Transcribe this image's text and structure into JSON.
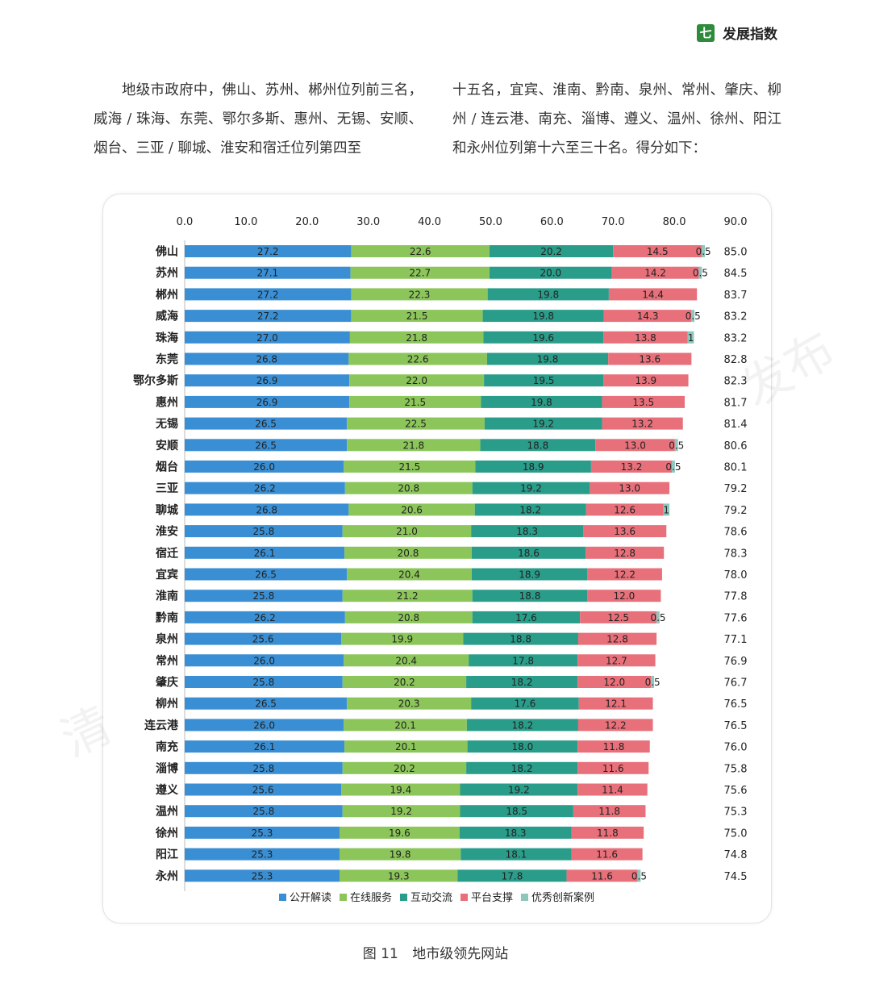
{
  "header": {
    "badge": "七",
    "title": "发展指数"
  },
  "text": {
    "left": "地级市政府中，佛山、苏州、郴州位列前三名，威海 / 珠海、东莞、鄂尔多斯、惠州、无锡、安顺、烟台、三亚 / 聊城、淮安和宿迁位列第四至",
    "right": "十五名，宜宾、淮南、黔南、泉州、常州、肇庆、柳州 / 连云港、南充、淄博、遵义、温州、徐州、阳江和永州位列第十六至三十名。得分如下："
  },
  "watermark": {
    "left": "清",
    "right": "发布"
  },
  "caption": {
    "label": "图 11",
    "title": "地市级领先网站"
  },
  "chart_data": {
    "type": "bar",
    "orientation": "horizontal",
    "stacked": true,
    "xlim": [
      0,
      90
    ],
    "x_ticks": [
      "0.0",
      "10.0",
      "20.0",
      "30.0",
      "40.0",
      "50.0",
      "60.0",
      "70.0",
      "80.0",
      "90.0"
    ],
    "legend_position": "bottom",
    "categories": [
      "佛山",
      "苏州",
      "郴州",
      "威海",
      "珠海",
      "东莞",
      "鄂尔多斯",
      "惠州",
      "无锡",
      "安顺",
      "烟台",
      "三亚",
      "聊城",
      "淮安",
      "宿迁",
      "宜宾",
      "淮南",
      "黔南",
      "泉州",
      "常州",
      "肇庆",
      "柳州",
      "连云港",
      "南充",
      "淄博",
      "遵义",
      "温州",
      "徐州",
      "阳江",
      "永州"
    ],
    "series": [
      {
        "name": "公开解读",
        "color": "#3a8fd4",
        "values": [
          27.2,
          27.1,
          27.2,
          27.2,
          27.0,
          26.8,
          26.9,
          26.9,
          26.5,
          26.5,
          26.0,
          26.2,
          26.8,
          25.8,
          26.1,
          26.5,
          25.8,
          26.2,
          25.6,
          26.0,
          25.8,
          26.5,
          26.0,
          26.1,
          25.8,
          25.6,
          25.8,
          25.3,
          25.3,
          25.3
        ]
      },
      {
        "name": "在线服务",
        "color": "#8cc65a",
        "values": [
          22.6,
          22.7,
          22.3,
          21.5,
          21.8,
          22.6,
          22.0,
          21.5,
          22.5,
          21.8,
          21.5,
          20.8,
          20.6,
          21.0,
          20.8,
          20.4,
          21.2,
          20.8,
          19.9,
          20.4,
          20.2,
          20.3,
          20.1,
          20.1,
          20.2,
          19.4,
          19.2,
          19.6,
          19.8,
          19.3
        ]
      },
      {
        "name": "互动交流",
        "color": "#2a9d8a",
        "values": [
          20.2,
          20.0,
          19.8,
          19.8,
          19.6,
          19.8,
          19.5,
          19.8,
          19.2,
          18.8,
          18.9,
          19.2,
          18.2,
          18.3,
          18.6,
          18.9,
          18.8,
          17.6,
          18.8,
          17.8,
          18.2,
          17.6,
          18.2,
          18.0,
          18.2,
          19.2,
          18.5,
          18.3,
          18.1,
          17.8
        ]
      },
      {
        "name": "平台支撑",
        "color": "#e8707a",
        "values": [
          14.5,
          14.2,
          14.4,
          14.3,
          13.8,
          13.6,
          13.9,
          13.5,
          13.2,
          13.0,
          13.2,
          13.0,
          12.6,
          13.6,
          12.8,
          12.2,
          12.0,
          12.5,
          12.8,
          12.7,
          12.0,
          12.1,
          12.2,
          11.8,
          11.6,
          11.4,
          11.8,
          11.8,
          11.6,
          11.6
        ]
      },
      {
        "name": "优秀创新案例",
        "color": "#8cc6bd",
        "values": [
          0.5,
          0.5,
          0,
          0.5,
          1,
          0,
          0,
          0,
          0,
          0.5,
          0.5,
          0,
          1,
          0,
          0,
          0,
          0,
          0.5,
          0,
          0,
          0.5,
          0,
          0,
          0,
          0,
          0,
          0,
          0,
          0,
          0.5
        ]
      }
    ],
    "totals": [
      "85.0",
      "84.5",
      "83.7",
      "83.2",
      "83.2",
      "82.8",
      "82.3",
      "81.7",
      "81.4",
      "80.6",
      "80.1",
      "79.2",
      "79.2",
      "78.6",
      "78.3",
      "78.0",
      "77.8",
      "77.6",
      "77.1",
      "76.9",
      "76.7",
      "76.5",
      "76.5",
      "76.0",
      "75.8",
      "75.6",
      "75.3",
      "75.0",
      "74.8",
      "74.5"
    ]
  }
}
